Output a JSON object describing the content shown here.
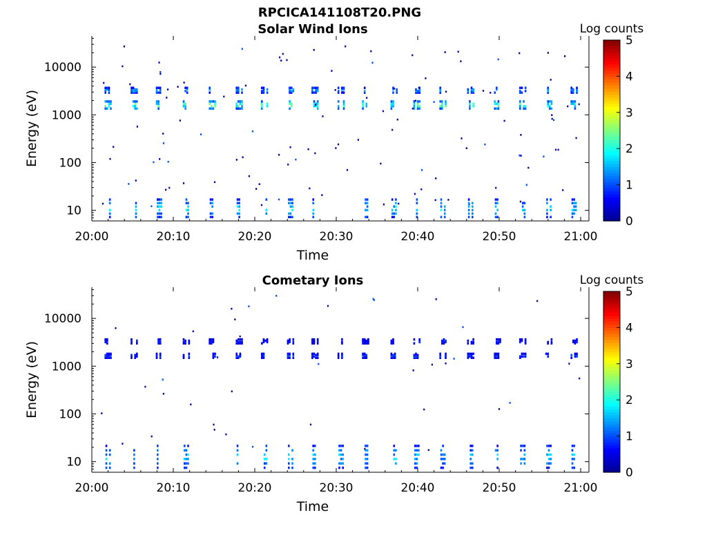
{
  "figure": {
    "filename_title": "RPCICA141108T20.PNG"
  },
  "colormap": [
    "#00008f",
    "#0000ff",
    "#0080ff",
    "#00ffff",
    "#80ff80",
    "#ffff00",
    "#ff8000",
    "#ff0000",
    "#800000"
  ],
  "chart_data": [
    {
      "type": "heatmap",
      "title": "Solar Wind Ions",
      "xlabel": "Time",
      "ylabel": "Energy (eV)",
      "x_ticks": [
        "20:00",
        "20:10",
        "20:20",
        "20:30",
        "20:40",
        "20:50",
        "21:00"
      ],
      "x_range_minutes": [
        0,
        61
      ],
      "y_scale": "log",
      "y_range": [
        6,
        45000
      ],
      "y_ticks": [
        10,
        100,
        1000,
        10000
      ],
      "y_tick_labels": [
        "10",
        "100",
        "1000",
        "10000"
      ],
      "colorbar": {
        "label": "Log counts",
        "range": [
          0,
          5
        ],
        "ticks": [
          "0",
          "1",
          "2",
          "3",
          "4",
          "5"
        ]
      },
      "pulse_minutes": [
        2,
        5.2,
        8.3,
        11.6,
        14.8,
        18.1,
        21.2,
        24.4,
        27.4,
        30.6,
        33.6,
        37.1,
        39.9,
        43.1,
        46.5,
        49.8,
        52.9,
        56.1,
        59.2
      ],
      "features": [
        {
          "energy_center_ev": 1700,
          "energy_spread_dex": 0.09,
          "peak_log_counts": 2.9,
          "role": "solar-wind-proton-band"
        },
        {
          "energy_center_ev": 3400,
          "energy_spread_dex": 0.06,
          "peak_log_counts": 1.8,
          "role": "solar-wind-alpha-band"
        },
        {
          "energy_center_ev": 12,
          "energy_spread_dex": 0.2,
          "peak_log_counts": 2.2,
          "role": "low-energy-band"
        }
      ]
    },
    {
      "type": "heatmap",
      "title": "Cometary Ions",
      "xlabel": "Time",
      "ylabel": "Energy (eV)",
      "x_ticks": [
        "20:00",
        "20:10",
        "20:20",
        "20:30",
        "20:40",
        "20:50",
        "21:00"
      ],
      "x_range_minutes": [
        0,
        61
      ],
      "y_scale": "log",
      "y_range": [
        6,
        45000
      ],
      "y_ticks": [
        10,
        100,
        1000,
        10000
      ],
      "y_tick_labels": [
        "10",
        "100",
        "1000",
        "10000"
      ],
      "colorbar": {
        "label": "Log counts",
        "range": [
          0,
          5
        ],
        "ticks": [
          "0",
          "1",
          "2",
          "3",
          "4",
          "5"
        ]
      },
      "pulse_minutes": [
        2,
        5.2,
        8.3,
        11.6,
        14.8,
        18.1,
        21.2,
        24.4,
        27.4,
        30.6,
        33.6,
        37.1,
        39.9,
        43.1,
        46.5,
        49.8,
        52.9,
        56.1,
        59.2
      ],
      "features": [
        {
          "energy_center_ev": 1700,
          "energy_spread_dex": 0.05,
          "peak_log_counts": 1.2,
          "role": "proton-leakage-band"
        },
        {
          "energy_center_ev": 3400,
          "energy_spread_dex": 0.05,
          "peak_log_counts": 1.0,
          "role": "alpha-leakage-band"
        },
        {
          "energy_center_ev": 14,
          "energy_spread_dex": 0.25,
          "peak_log_counts": 2.1,
          "role": "cometary-low-energy-band"
        }
      ]
    }
  ]
}
